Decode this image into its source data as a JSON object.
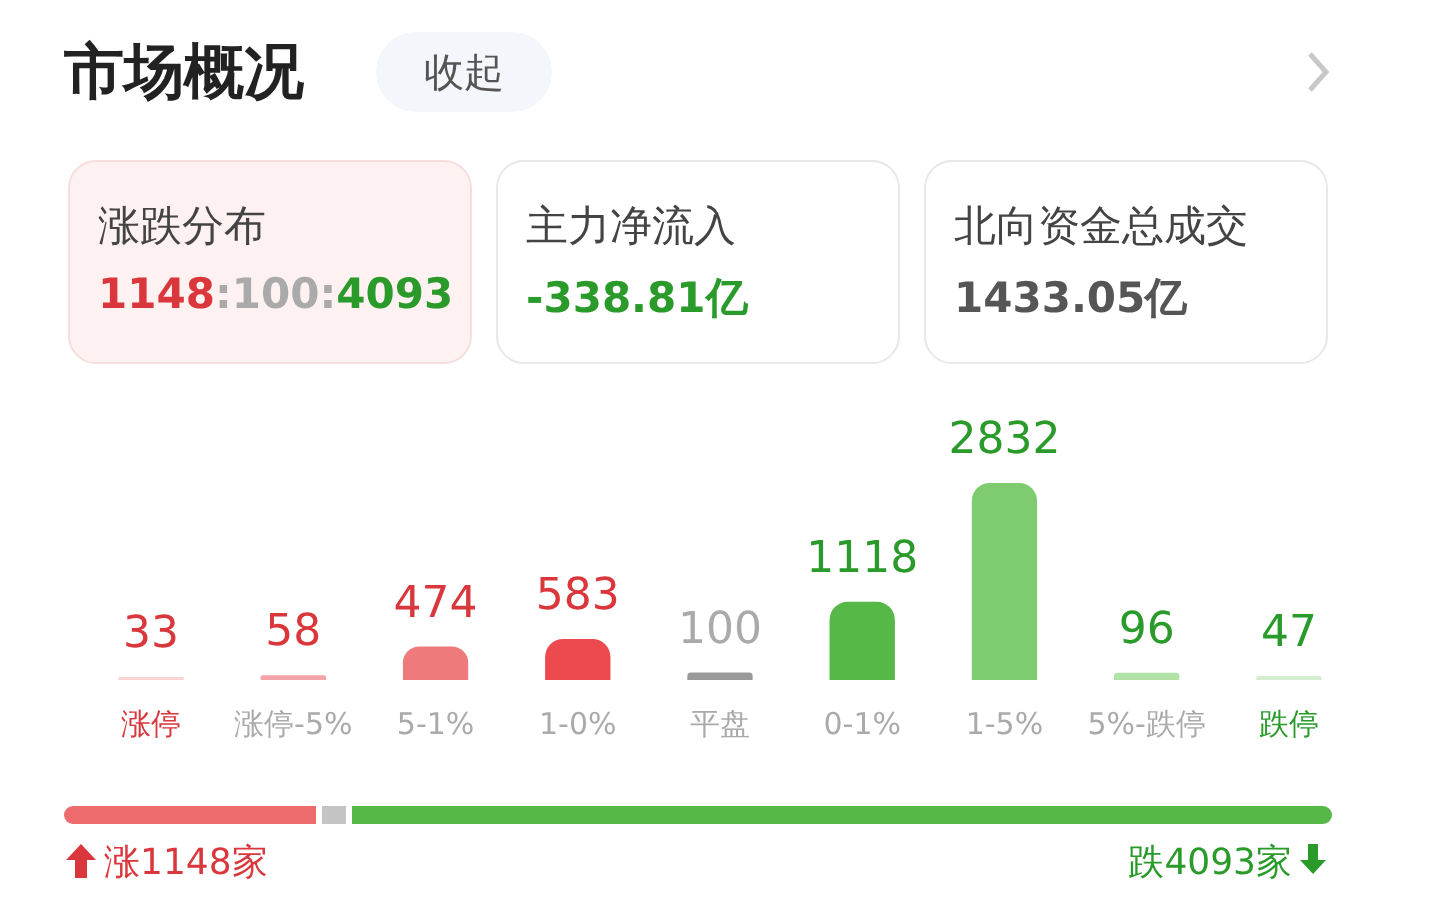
{
  "chart_data": {
    "type": "bar",
    "title": "市场概况",
    "categories": [
      "涨停",
      "涨停-5%",
      "5-1%",
      "1-0%",
      "平盘",
      "0-1%",
      "1-5%",
      "5%-跌停",
      "跌停"
    ],
    "values": [
      33,
      58,
      474,
      583,
      100,
      1118,
      2832,
      96,
      47
    ],
    "colors": [
      "#fbd3d5",
      "#f4a3a7",
      "#ee7a7c",
      "#ec4a4f",
      "#9a9a9a",
      "#56b947",
      "#7fcb70",
      "#b3e2a9",
      "#d5eed0"
    ],
    "data_labels": true,
    "grid": false,
    "legend": false,
    "annotations": [
      "收起",
      "涨跌分布",
      "1148:100:4093",
      "主力净流入",
      "-338.81亿",
      "北向资金总成交",
      "1433.05亿",
      "涨1148家",
      "跌4093家"
    ]
  }
}
